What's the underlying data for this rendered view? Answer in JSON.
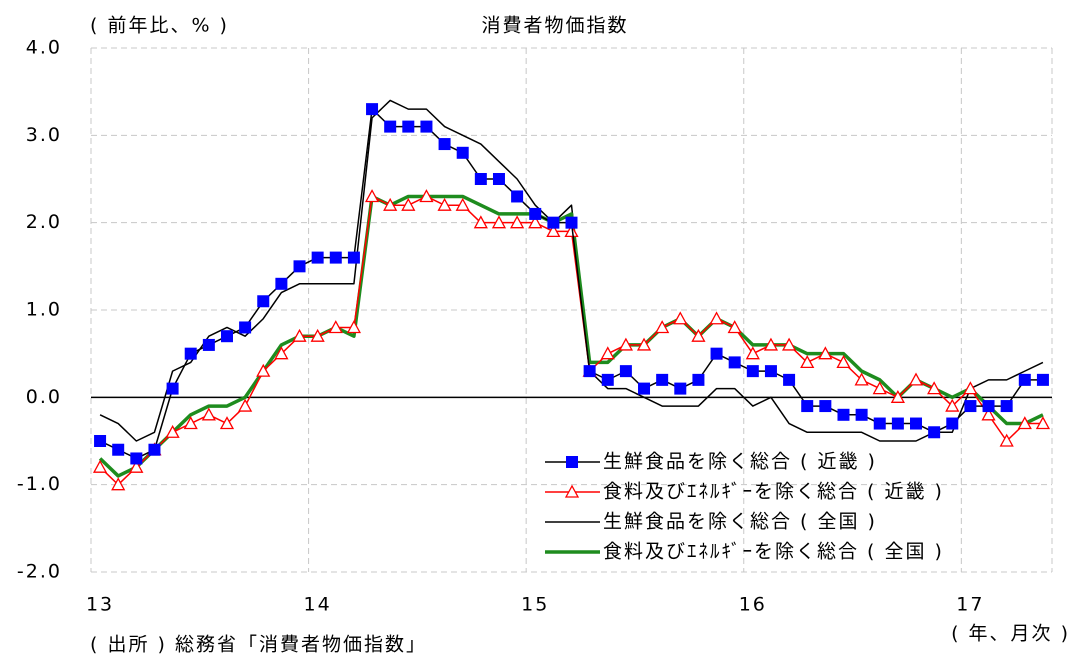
{
  "chart_data": {
    "type": "line",
    "title": "消費者物価指数",
    "y_label": "( 前年比、% )",
    "x_label": "( 年、月次 )",
    "source": "( 出所 ) 総務省「消費者物価指数」",
    "categories": [
      "13",
      null,
      null,
      null,
      null,
      null,
      null,
      null,
      null,
      null,
      null,
      null,
      "14",
      null,
      null,
      null,
      null,
      null,
      null,
      null,
      null,
      null,
      null,
      null,
      "15",
      null,
      null,
      null,
      null,
      null,
      null,
      null,
      null,
      null,
      null,
      null,
      "16",
      null,
      null,
      null,
      null,
      null,
      null,
      null,
      null,
      null,
      null,
      null,
      "17",
      null,
      null,
      null,
      null
    ],
    "ylim": [
      -2,
      4
    ],
    "yticks": [
      {
        "value": -2,
        "label": "-2.0"
      },
      {
        "value": -1,
        "label": "-1.0"
      },
      {
        "value": 0,
        "label": "0.0"
      },
      {
        "value": 1,
        "label": "1.0"
      },
      {
        "value": 2,
        "label": "2.0"
      },
      {
        "value": 3,
        "label": "3.0"
      },
      {
        "value": 4,
        "label": "4.0"
      }
    ],
    "grid": true,
    "legend": "lower right",
    "series": [
      {
        "name": "生鮮食品を除く総合 ( 近畿 )",
        "color": "#0000ff",
        "line_color": "#000000",
        "marker": "square",
        "line_width": 1.5,
        "values": [
          -0.5,
          -0.6,
          -0.7,
          -0.6,
          0.1,
          0.5,
          0.6,
          0.7,
          0.8,
          1.1,
          1.3,
          1.5,
          1.6,
          1.6,
          1.6,
          3.3,
          3.1,
          3.1,
          3.1,
          2.9,
          2.8,
          2.5,
          2.5,
          2.3,
          2.1,
          2.0,
          2.0,
          0.3,
          0.2,
          0.3,
          0.1,
          0.2,
          0.1,
          0.2,
          0.5,
          0.4,
          0.3,
          0.3,
          0.2,
          -0.1,
          -0.1,
          -0.2,
          -0.2,
          -0.3,
          -0.3,
          -0.3,
          -0.4,
          -0.3,
          -0.1,
          -0.1,
          -0.1,
          0.2,
          0.2
        ]
      },
      {
        "name": "食料及びｴﾈﾙｷﾞｰを除く総合 ( 近畿 )",
        "color": "#ff0000",
        "line_color": "#ff0000",
        "marker": "triangle",
        "line_width": 1.5,
        "values": [
          -0.8,
          -1.0,
          -0.8,
          -0.6,
          -0.4,
          -0.3,
          -0.2,
          -0.3,
          -0.1,
          0.3,
          0.5,
          0.7,
          0.7,
          0.8,
          0.8,
          2.3,
          2.2,
          2.2,
          2.3,
          2.2,
          2.2,
          2.0,
          2.0,
          2.0,
          2.0,
          1.9,
          1.9,
          0.3,
          0.5,
          0.6,
          0.6,
          0.8,
          0.9,
          0.7,
          0.9,
          0.8,
          0.5,
          0.6,
          0.6,
          0.4,
          0.5,
          0.4,
          0.2,
          0.1,
          0.0,
          0.2,
          0.1,
          -0.1,
          0.1,
          -0.2,
          -0.5,
          -0.3,
          -0.3
        ]
      },
      {
        "name": "生鮮食品を除く総合 ( 全国 )",
        "color": "#000000",
        "line_color": "#000000",
        "marker": "none",
        "line_width": 1.5,
        "values": [
          -0.2,
          -0.3,
          -0.5,
          -0.4,
          0.3,
          0.4,
          0.7,
          0.8,
          0.7,
          0.9,
          1.2,
          1.3,
          1.3,
          1.3,
          1.3,
          3.2,
          3.4,
          3.3,
          3.3,
          3.1,
          3.0,
          2.9,
          2.7,
          2.5,
          2.2,
          2.0,
          2.2,
          0.3,
          0.1,
          0.1,
          0.0,
          -0.1,
          -0.1,
          -0.1,
          0.1,
          0.1,
          -0.1,
          0.0,
          -0.3,
          -0.4,
          -0.4,
          -0.4,
          -0.4,
          -0.5,
          -0.5,
          -0.5,
          -0.4,
          -0.4,
          0.1,
          0.2,
          0.2,
          0.3,
          0.4
        ]
      },
      {
        "name": "食料及びｴﾈﾙｷﾞｰを除く総合 ( 全国 )",
        "color": "#1e8c1e",
        "line_color": "#1e8c1e",
        "marker": "none",
        "line_width": 3.5,
        "values": [
          -0.7,
          -0.9,
          -0.8,
          -0.6,
          -0.4,
          -0.2,
          -0.1,
          -0.1,
          0.0,
          0.3,
          0.6,
          0.7,
          0.7,
          0.8,
          0.7,
          2.3,
          2.2,
          2.3,
          2.3,
          2.3,
          2.3,
          2.2,
          2.1,
          2.1,
          2.1,
          2.0,
          2.1,
          0.4,
          0.4,
          0.6,
          0.6,
          0.8,
          0.9,
          0.7,
          0.9,
          0.8,
          0.6,
          0.6,
          0.6,
          0.5,
          0.5,
          0.5,
          0.3,
          0.2,
          0.0,
          0.2,
          0.1,
          0.0,
          0.1,
          -0.1,
          -0.3,
          -0.3,
          -0.2
        ]
      }
    ]
  }
}
